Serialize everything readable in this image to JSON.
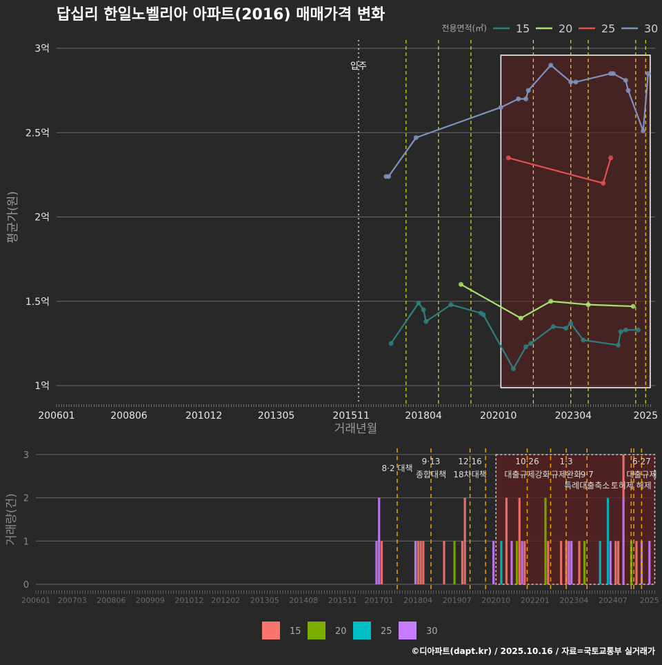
{
  "chart_data": [
    {
      "type": "line",
      "title": "답십리 한일노벨리아 아파트(2016) 매매가격 변화",
      "xlabel": "거래년월",
      "ylabel": "평균가(원)",
      "legend_title": "전용면적(㎡)",
      "legend_position": "top-right",
      "x_ticks": [
        "200601",
        "200806",
        "201012",
        "201305",
        "201511",
        "201804",
        "202010",
        "202304",
        "2025"
      ],
      "y_ticks": [
        {
          "value": 1,
          "label": "1억"
        },
        {
          "value": 1.5,
          "label": "1.5억"
        },
        {
          "value": 2,
          "label": "2억"
        },
        {
          "value": 2.5,
          "label": "2.5억"
        },
        {
          "value": 3,
          "label": "3억"
        }
      ],
      "ylim_eok": [
        0.88,
        3.05
      ],
      "xlim": [
        "200512",
        "202511"
      ],
      "grid": true,
      "move_in": {
        "date": "201602",
        "label": "입주"
      },
      "highlight_period": [
        "202011",
        "202510"
      ],
      "policy_dates": [
        "201709",
        "201810",
        "201911",
        "202112",
        "202303",
        "202310",
        "202505",
        "202509"
      ],
      "series": [
        {
          "name": "15",
          "color": "#2e7f7f",
          "points": [
            [
              "201703",
              1.25
            ],
            [
              "201802",
              1.49
            ],
            [
              "201804",
              1.45
            ],
            [
              "201805",
              1.38
            ],
            [
              "201903",
              1.48
            ],
            [
              "202003",
              1.43
            ],
            [
              "202004",
              1.42
            ],
            [
              "202104",
              1.1
            ],
            [
              "202109",
              1.23
            ],
            [
              "202111",
              1.25
            ],
            [
              "202208",
              1.35
            ],
            [
              "202301",
              1.34
            ],
            [
              "202303",
              1.37
            ],
            [
              "202308",
              1.27
            ],
            [
              "202410",
              1.24
            ],
            [
              "202411",
              1.32
            ],
            [
              "202501",
              1.33
            ],
            [
              "202506",
              1.33
            ]
          ]
        },
        {
          "name": "20",
          "color": "#a6e36e",
          "points": [
            [
              "201907",
              1.6
            ],
            [
              "202107",
              1.4
            ],
            [
              "202207",
              1.5
            ],
            [
              "202310",
              1.48
            ],
            [
              "202504",
              1.47
            ]
          ]
        },
        {
          "name": "25",
          "color": "#e35050",
          "points": [
            [
              "202102",
              2.35
            ],
            [
              "202404",
              2.2
            ],
            [
              "202407",
              2.35
            ]
          ]
        },
        {
          "name": "30",
          "color": "#7f93c0",
          "points": [
            [
              "201701",
              2.24
            ],
            [
              "201702",
              2.24
            ],
            [
              "201801",
              2.47
            ],
            [
              "202011",
              2.65
            ],
            [
              "202106",
              2.7
            ],
            [
              "202109",
              2.7
            ],
            [
              "202110",
              2.75
            ],
            [
              "202207",
              2.9
            ],
            [
              "202303",
              2.8
            ],
            [
              "202305",
              2.8
            ],
            [
              "202407",
              2.85
            ],
            [
              "202408",
              2.85
            ],
            [
              "202501",
              2.81
            ],
            [
              "202502",
              2.75
            ],
            [
              "202508",
              2.51
            ],
            [
              "202510",
              2.85
            ]
          ]
        }
      ]
    },
    {
      "type": "bar",
      "ylabel": "거래량(건)",
      "y_ticks": [
        0,
        1,
        2,
        3
      ],
      "ylim": [
        0,
        3
      ],
      "x_ticks": [
        "200601",
        "200703",
        "200806",
        "200909",
        "201012",
        "201202",
        "201305",
        "201408",
        "201511",
        "201701",
        "201804",
        "201907",
        "202010",
        "202201",
        "202304",
        "202407",
        "2025"
      ],
      "highlight_period": [
        "202010",
        "202510"
      ],
      "legend": [
        {
          "name": "15",
          "color": "#f8766d"
        },
        {
          "name": "20",
          "color": "#7cae00"
        },
        {
          "name": "25",
          "color": "#00bfc4"
        },
        {
          "name": "30",
          "color": "#c77cff"
        }
      ],
      "policies": [
        {
          "date": "201708",
          "lines": [
            "8·2 대책"
          ]
        },
        {
          "date": "201809",
          "lines": [
            "9·13",
            "종합대책"
          ]
        },
        {
          "date": "201912",
          "lines": [
            "12·16",
            "18차대책"
          ]
        },
        {
          "date": "202006",
          "lines": []
        },
        {
          "date": "202110",
          "lines": [
            "10·26",
            "대출규제강화"
          ]
        },
        {
          "date": "202207",
          "lines": []
        },
        {
          "date": "202301",
          "lines": [
            "1·3",
            "규제완화"
          ]
        },
        {
          "date": "202309",
          "lines": [
            "9·7",
            "특례대출축소"
          ]
        },
        {
          "date": "202502",
          "lines": [
            "토허제 해제"
          ]
        },
        {
          "date": "202503",
          "lines": []
        },
        {
          "date": "202506",
          "lines": [
            "6·27",
            "대출규제"
          ]
        }
      ],
      "bars": [
        [
          "201612",
          "30",
          1
        ],
        [
          "201701",
          "30",
          2
        ],
        [
          "201702",
          "15",
          1
        ],
        [
          "201803",
          "30",
          1
        ],
        [
          "201804",
          "15",
          1
        ],
        [
          "201805",
          "15",
          1
        ],
        [
          "201806",
          "15",
          1
        ],
        [
          "201902",
          "15",
          1
        ],
        [
          "201906",
          "20",
          1
        ],
        [
          "201909",
          "15",
          1
        ],
        [
          "201910",
          "15",
          2
        ],
        [
          "202009",
          "30",
          1
        ],
        [
          "202012",
          "25",
          1
        ],
        [
          "202102",
          "15",
          2
        ],
        [
          "202104",
          "30",
          1
        ],
        [
          "202106",
          "20",
          1
        ],
        [
          "202107",
          "15",
          2
        ],
        [
          "202108",
          "30",
          1
        ],
        [
          "202109",
          "15",
          1
        ],
        [
          "202205",
          "20",
          2
        ],
        [
          "202206",
          "15",
          1
        ],
        [
          "202211",
          "15",
          1
        ],
        [
          "202301",
          "15",
          1
        ],
        [
          "202302",
          "30",
          1
        ],
        [
          "202303",
          "30",
          1
        ],
        [
          "202306",
          "15",
          1
        ],
        [
          "202308",
          "20",
          1
        ],
        [
          "202402",
          "25",
          1
        ],
        [
          "202405",
          "25",
          2
        ],
        [
          "202406",
          "30",
          1
        ],
        [
          "202408",
          "15",
          1
        ],
        [
          "202409",
          "15",
          1
        ],
        [
          "202411",
          "30",
          2
        ],
        [
          "202411",
          "15",
          1
        ],
        [
          "202502",
          "20",
          1
        ],
        [
          "202504",
          "15",
          1
        ],
        [
          "202506",
          "30",
          1
        ],
        [
          "202509",
          "30",
          1
        ]
      ]
    }
  ],
  "footer": "©디아파트(dapt.kr) / 2025.10.16 / 자료=국토교통부 실거래가"
}
